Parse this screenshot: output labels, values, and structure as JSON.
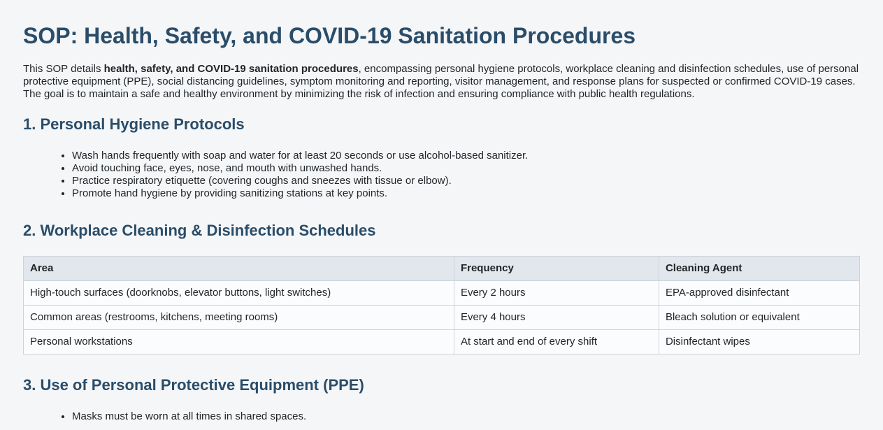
{
  "page": {
    "title": "SOP: Health, Safety, and COVID-19 Sanitation Procedures"
  },
  "intro": {
    "prefix": "This SOP details ",
    "bold": "health, safety, and COVID-19 sanitation procedures",
    "rest": ", encompassing personal hygiene protocols, workplace cleaning and disinfection schedules, use of personal protective equipment (PPE), social distancing guidelines, symptom monitoring and reporting, visitor management, and response plans for suspected or confirmed COVID-19 cases. The goal is to maintain a safe and healthy environment by minimizing the risk of infection and ensuring compliance with public health regulations."
  },
  "sections": [
    {
      "heading": "1. Personal Hygiene Protocols",
      "bullets": [
        "Wash hands frequently with soap and water for at least 20 seconds or use alcohol-based sanitizer.",
        "Avoid touching face, eyes, nose, and mouth with unwashed hands.",
        "Practice respiratory etiquette (covering coughs and sneezes with tissue or elbow).",
        "Promote hand hygiene by providing sanitizing stations at key points."
      ]
    },
    {
      "heading": "2. Workplace Cleaning & Disinfection Schedules"
    },
    {
      "heading": "3. Use of Personal Protective Equipment (PPE)",
      "bullets": [
        "Masks must be worn at all times in shared spaces."
      ]
    }
  ],
  "table": {
    "headers": [
      "Area",
      "Frequency",
      "Cleaning Agent"
    ],
    "rows": [
      [
        "High-touch surfaces (doorknobs, elevator buttons, light switches)",
        "Every 2 hours",
        "EPA-approved disinfectant"
      ],
      [
        "Common areas (restrooms, kitchens, meeting rooms)",
        "Every 4 hours",
        "Bleach solution or equivalent"
      ],
      [
        "Personal workstations",
        "At start and end of every shift",
        "Disinfectant wipes"
      ]
    ]
  },
  "colors": {
    "heading": "#2a4d69",
    "body_text": "#1f2428",
    "page_bg": "#f5f6f8",
    "table_header_bg": "#e1e7ed",
    "table_row_bg": "#fbfcfd",
    "table_border": "#ccd3da"
  }
}
